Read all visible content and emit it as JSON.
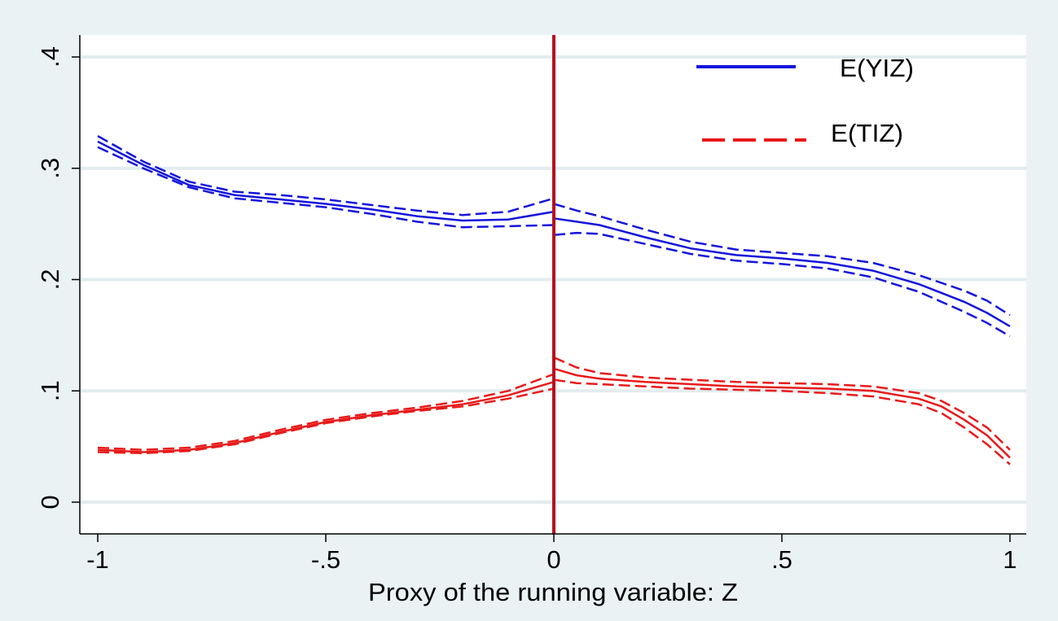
{
  "chart_data": {
    "type": "line",
    "xlabel": "Proxy of the running variable: Z",
    "ylabel": "",
    "xlim": [
      -1,
      1
    ],
    "ylim": [
      0,
      0.4
    ],
    "x_ticks": [
      {
        "value": -1,
        "label": "-1"
      },
      {
        "value": -0.5,
        "label": "-.5"
      },
      {
        "value": 0,
        "label": "0"
      },
      {
        "value": 0.5,
        "label": ".5"
      },
      {
        "value": 1,
        "label": "1"
      }
    ],
    "y_ticks": [
      {
        "value": 0,
        "label": "0"
      },
      {
        "value": 0.1,
        "label": ".1"
      },
      {
        "value": 0.2,
        "label": ".2"
      },
      {
        "value": 0.3,
        "label": ".3"
      },
      {
        "value": 0.4,
        "label": ".4"
      }
    ],
    "grid": true,
    "cutoff": 0,
    "legend": {
      "placement": "top-right",
      "entries": [
        {
          "label": "E(YIZ)",
          "style": "solid",
          "color": "#1414dc"
        },
        {
          "label": "E(TIZ)",
          "style": "dashed",
          "color": "#e81a1a"
        }
      ]
    },
    "series": [
      {
        "name": "E(YIZ)",
        "color": "#1414dc",
        "segments": [
          {
            "x": [
              -1,
              -0.9,
              -0.8,
              -0.7,
              -0.6,
              -0.5,
              -0.4,
              -0.3,
              -0.2,
              -0.1,
              0
            ],
            "y": [
              0.324,
              0.303,
              0.285,
              0.276,
              0.272,
              0.268,
              0.263,
              0.257,
              0.253,
              0.254,
              0.261
            ],
            "lower": [
              0.319,
              0.3,
              0.283,
              0.273,
              0.269,
              0.265,
              0.259,
              0.252,
              0.247,
              0.248,
              0.249
            ],
            "upper": [
              0.329,
              0.306,
              0.288,
              0.279,
              0.276,
              0.272,
              0.267,
              0.262,
              0.258,
              0.261,
              0.273
            ]
          },
          {
            "x": [
              0,
              0.05,
              0.1,
              0.2,
              0.3,
              0.4,
              0.5,
              0.6,
              0.7,
              0.8,
              0.9,
              0.95,
              1
            ],
            "y": [
              0.255,
              0.252,
              0.249,
              0.238,
              0.228,
              0.222,
              0.219,
              0.215,
              0.208,
              0.196,
              0.18,
              0.17,
              0.158
            ],
            "lower": [
              0.24,
              0.242,
              0.241,
              0.232,
              0.223,
              0.217,
              0.214,
              0.21,
              0.202,
              0.189,
              0.171,
              0.161,
              0.149
            ],
            "upper": [
              0.268,
              0.262,
              0.257,
              0.245,
              0.234,
              0.227,
              0.224,
              0.221,
              0.215,
              0.204,
              0.19,
              0.181,
              0.168
            ]
          }
        ]
      },
      {
        "name": "E(TIZ)",
        "color": "#e81a1a",
        "segments": [
          {
            "x": [
              -1,
              -0.9,
              -0.8,
              -0.7,
              -0.6,
              -0.5,
              -0.4,
              -0.3,
              -0.2,
              -0.1,
              0
            ],
            "y": [
              0.047,
              0.045,
              0.047,
              0.053,
              0.063,
              0.072,
              0.078,
              0.083,
              0.088,
              0.096,
              0.108
            ],
            "lower": [
              0.045,
              0.044,
              0.046,
              0.052,
              0.062,
              0.071,
              0.077,
              0.082,
              0.086,
              0.093,
              0.102
            ],
            "upper": [
              0.049,
              0.047,
              0.049,
              0.055,
              0.065,
              0.074,
              0.08,
              0.085,
              0.091,
              0.1,
              0.115
            ]
          },
          {
            "x": [
              0,
              0.05,
              0.1,
              0.2,
              0.3,
              0.4,
              0.5,
              0.6,
              0.7,
              0.8,
              0.85,
              0.9,
              0.95,
              1
            ],
            "y": [
              0.12,
              0.114,
              0.111,
              0.108,
              0.106,
              0.104,
              0.103,
              0.102,
              0.1,
              0.093,
              0.086,
              0.074,
              0.06,
              0.04
            ],
            "lower": [
              0.11,
              0.107,
              0.106,
              0.104,
              0.102,
              0.101,
              0.1,
              0.098,
              0.095,
              0.088,
              0.08,
              0.067,
              0.052,
              0.034
            ],
            "upper": [
              0.13,
              0.121,
              0.116,
              0.112,
              0.11,
              0.108,
              0.107,
              0.106,
              0.104,
              0.098,
              0.091,
              0.08,
              0.067,
              0.047
            ]
          }
        ]
      }
    ]
  }
}
